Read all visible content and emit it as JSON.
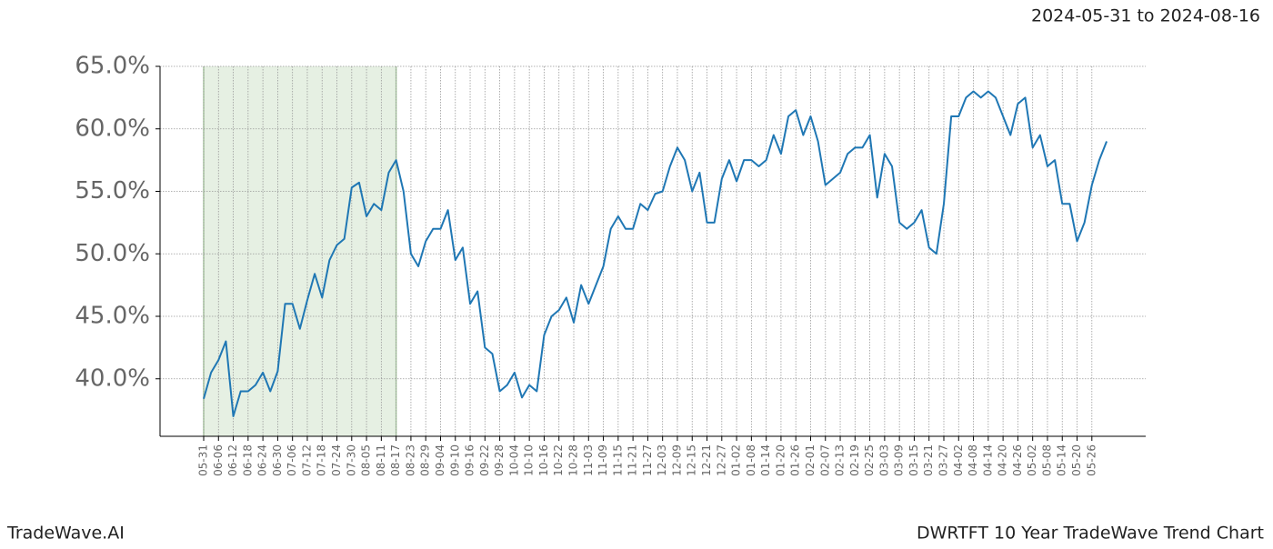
{
  "chart_data": {
    "type": "line",
    "subtitle": "2024-05-31 to 2024-08-16",
    "brand": "TradeWave.AI",
    "title": "DWRTFT 10 Year TradeWave Trend Chart",
    "categories": [
      "05-31",
      null,
      "06-06",
      null,
      "06-12",
      null,
      "06-18",
      null,
      "06-24",
      null,
      "06-30",
      null,
      "07-06",
      null,
      "07-12",
      null,
      "07-18",
      null,
      "07-24",
      null,
      "07-30",
      null,
      "08-05",
      null,
      "08-11",
      null,
      "08-17",
      null,
      "08-23",
      null,
      "08-29",
      null,
      "09-04",
      null,
      "09-10",
      null,
      "09-16",
      null,
      "09-22",
      null,
      "09-28",
      null,
      "10-04",
      null,
      "10-10",
      null,
      "10-16",
      null,
      "10-22",
      null,
      "10-28",
      null,
      "11-03",
      null,
      "11-09",
      null,
      "11-15",
      null,
      "11-21",
      null,
      "11-27",
      null,
      "12-03",
      null,
      "12-09",
      null,
      "12-15",
      null,
      "12-21",
      null,
      "12-27",
      null,
      "01-02",
      null,
      "01-08",
      null,
      "01-14",
      null,
      "01-20",
      null,
      "01-26",
      null,
      "02-01",
      null,
      "02-07",
      null,
      "02-13",
      null,
      "02-19",
      null,
      "02-25",
      null,
      "03-03",
      null,
      "03-09",
      null,
      "03-15",
      null,
      "03-21",
      null,
      "03-27",
      null,
      "04-02",
      null,
      "04-08",
      null,
      "04-14",
      null,
      "04-20",
      null,
      "04-26",
      null,
      "05-02",
      null,
      "05-08",
      null,
      "05-14",
      null,
      "05-20",
      null,
      "05-26",
      null,
      null
    ],
    "series": [
      {
        "color": "#1f77b4",
        "values": [
          38.4,
          40.5,
          41.5,
          43.0,
          37.0,
          39.0,
          39.0,
          39.5,
          40.5,
          39.0,
          40.6,
          46.0,
          46.0,
          44.0,
          46.3,
          48.4,
          46.5,
          49.5,
          50.7,
          51.2,
          55.3,
          55.7,
          53.0,
          54.0,
          53.5,
          56.5,
          57.5,
          55.0,
          50.0,
          49.0,
          51.0,
          52.0,
          52.0,
          53.5,
          49.5,
          50.5,
          46.0,
          47.0,
          42.5,
          42.0,
          39.0,
          39.5,
          40.5,
          38.5,
          39.5,
          39.0,
          43.5,
          45.0,
          45.5,
          46.5,
          44.5,
          47.5,
          46.0,
          47.5,
          49.0,
          52.0,
          53.0,
          52.0,
          52.0,
          54.0,
          53.5,
          54.8,
          55.0,
          57.0,
          58.5,
          57.5,
          55.0,
          56.5,
          52.5,
          52.5,
          56.0,
          57.5,
          55.8,
          57.5,
          57.5,
          57.0,
          57.5,
          59.5,
          58.0,
          61.0,
          61.5,
          59.5,
          61.0,
          59.0,
          55.5,
          56.0,
          56.5,
          58.0,
          58.5,
          58.5,
          59.5,
          54.5,
          58.0,
          57.0,
          52.5,
          52.0,
          52.5,
          53.5,
          50.5,
          50.0,
          54.0,
          61.0,
          61.0,
          62.5,
          63.0,
          62.5,
          63.0,
          62.5,
          61.0,
          59.5,
          62.0,
          62.5,
          58.5,
          59.5,
          57.0,
          57.5,
          54.0,
          54.0,
          51.0,
          52.5,
          55.5,
          57.5,
          59.0
        ]
      }
    ],
    "ylim": [
      35.4,
      65
    ],
    "yticks": [
      {
        "value": 40,
        "label": "40.0%"
      },
      {
        "value": 45,
        "label": "45.0%"
      },
      {
        "value": 50,
        "label": "50.0%"
      },
      {
        "value": 55,
        "label": "55.0%"
      },
      {
        "value": 60,
        "label": "60.0%"
      },
      {
        "value": 65,
        "label": "65.0%"
      }
    ],
    "grid": true,
    "shade": {
      "from": "05-31",
      "to": "08-17",
      "color": "#e6f0e3",
      "edge": "#a8c8a0"
    }
  }
}
